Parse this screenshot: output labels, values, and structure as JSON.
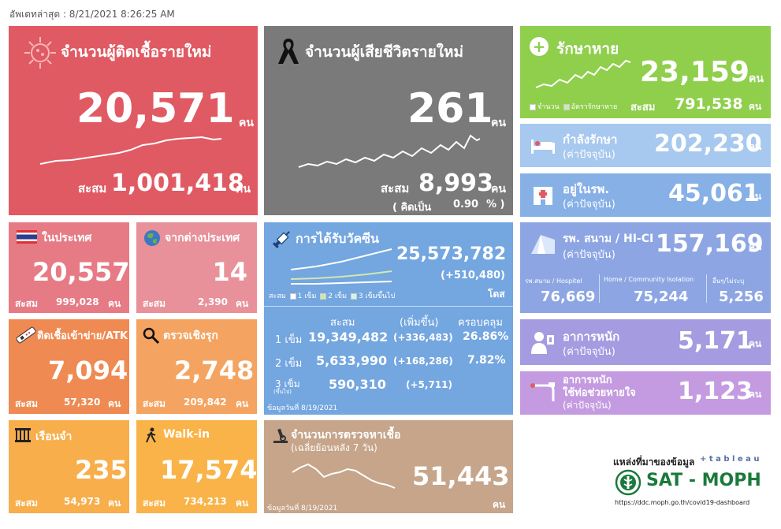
{
  "updated": "อัพเดทล่าสุด : 8/21/2021 8:26:25 AM",
  "unit": "คน",
  "acc": "สะสม",
  "new_cases": {
    "title": "จำนวนผู้ติดเชื้อรายใหม่",
    "value": "20,571",
    "acc_value": "1,001,418",
    "color": "#e05a63"
  },
  "new_deaths": {
    "title": "จำนวนผู้เสียชีวิตรายใหม่",
    "value": "261",
    "acc_value": "8,993",
    "pct_prefix": "( คิดเป็น",
    "pct_value": "0.90",
    "pct_suffix": "% )",
    "color": "#7a7a7a"
  },
  "recovered": {
    "title": "รักษาหาย",
    "value": "23,159",
    "acc_value": "791,538",
    "legend_count": "จำนวน",
    "legend_rate": "อัตรารักษาหาย",
    "color": "#8fcf4c"
  },
  "treating": {
    "title": "กำลังรักษา",
    "sub": "(ค่าปัจจุบัน)",
    "value": "202,230",
    "color": "#a7c8ef"
  },
  "hospital": {
    "title": "อยู่ในรพ.",
    "sub": "(ค่าปัจจุบัน)",
    "value": "45,061",
    "color": "#86b0e6"
  },
  "domestic": {
    "title": "ในประเทศ",
    "value": "20,557",
    "acc_value": "999,028",
    "color": "#e67b85"
  },
  "abroad": {
    "title": "จากต่างประเทศ",
    "value": "14",
    "acc_value": "2,390",
    "color": "#e8919a"
  },
  "vaccine": {
    "title": "การได้รับวัคซีน",
    "total": "25,573,782",
    "delta": "(+510,480)",
    "dose_unit": "โดส",
    "legend_prefix": "สะสม",
    "legend_1": "1 เข็ม",
    "legend_2": "2 เข็ม",
    "legend_3": "3 เข็มขึ้นไป",
    "headers": [
      "สะสม",
      "(เพิ่มขึ้น)",
      "ครอบคลุม"
    ],
    "rows": [
      {
        "label": "1 เข็ม",
        "acc": "19,349,482",
        "delta": "(+336,483)",
        "cover": "26.86%"
      },
      {
        "label": "2 เข็ม",
        "acc": "5,633,990",
        "delta": "(+168,286)",
        "cover": "7.82%"
      },
      {
        "label": "3 เข็ม",
        "label_sub": "(ขึ้นไป)",
        "acc": "590,310",
        "delta": "(+5,711)",
        "cover": ""
      }
    ],
    "note": "ข้อมูลวันที่ 8/19/2021",
    "color": "#74a6e0"
  },
  "field_hospital": {
    "title": "รพ. สนาม / HI-CI",
    "sub": "(ค่าปัจจุบัน)",
    "value": "157,169",
    "cols": [
      {
        "label": "รพ.สนาม / Hospitel",
        "value": "76,669"
      },
      {
        "label": "Home / Community Isolation",
        "value": "75,244"
      },
      {
        "label": "อื่นๆ/ไม่ระบุ",
        "value": "5,256"
      }
    ],
    "color": "#8da6e3"
  },
  "atk": {
    "title": "ติดเชื้อเข้าข่าย/ATK",
    "value": "7,094",
    "acc_value": "57,320",
    "color": "#ef8a52"
  },
  "proactive": {
    "title": "ตรวจเชิงรุก",
    "value": "2,748",
    "acc_value": "209,842",
    "color": "#f4a460"
  },
  "severe": {
    "title": "อาการหนัก",
    "sub": "(ค่าปัจจุบัน)",
    "value": "5,171",
    "color": "#a59be0"
  },
  "ventilator": {
    "title1": "อาการหนัก",
    "title2": "ใช้ท่อช่วยหายใจ",
    "sub": "(ค่าปัจจุบัน)",
    "value": "1,123",
    "color": "#c49be0"
  },
  "prison": {
    "title": "เรือนจำ",
    "value": "235",
    "acc_value": "54,973",
    "color": "#f7ae4b"
  },
  "walkin": {
    "title": "Walk-in",
    "value": "17,574",
    "acc_value": "734,213",
    "color": "#f9b348"
  },
  "tests": {
    "title": "จำนวนการตรวจหาเชื้อ",
    "sub": "(เฉลี่ยย้อนหลัง 7 วัน)",
    "value": "51,443",
    "note": "ข้อมูลวันที่ 8/19/2021",
    "color": "#c6a58a"
  },
  "source": {
    "label": "แหล่งที่มาของข้อมูล",
    "tableau": "+ t a b l e a u",
    "brand": "SAT - MOPH",
    "url": "https://ddc.moph.go.th/covid19-dashboard"
  }
}
